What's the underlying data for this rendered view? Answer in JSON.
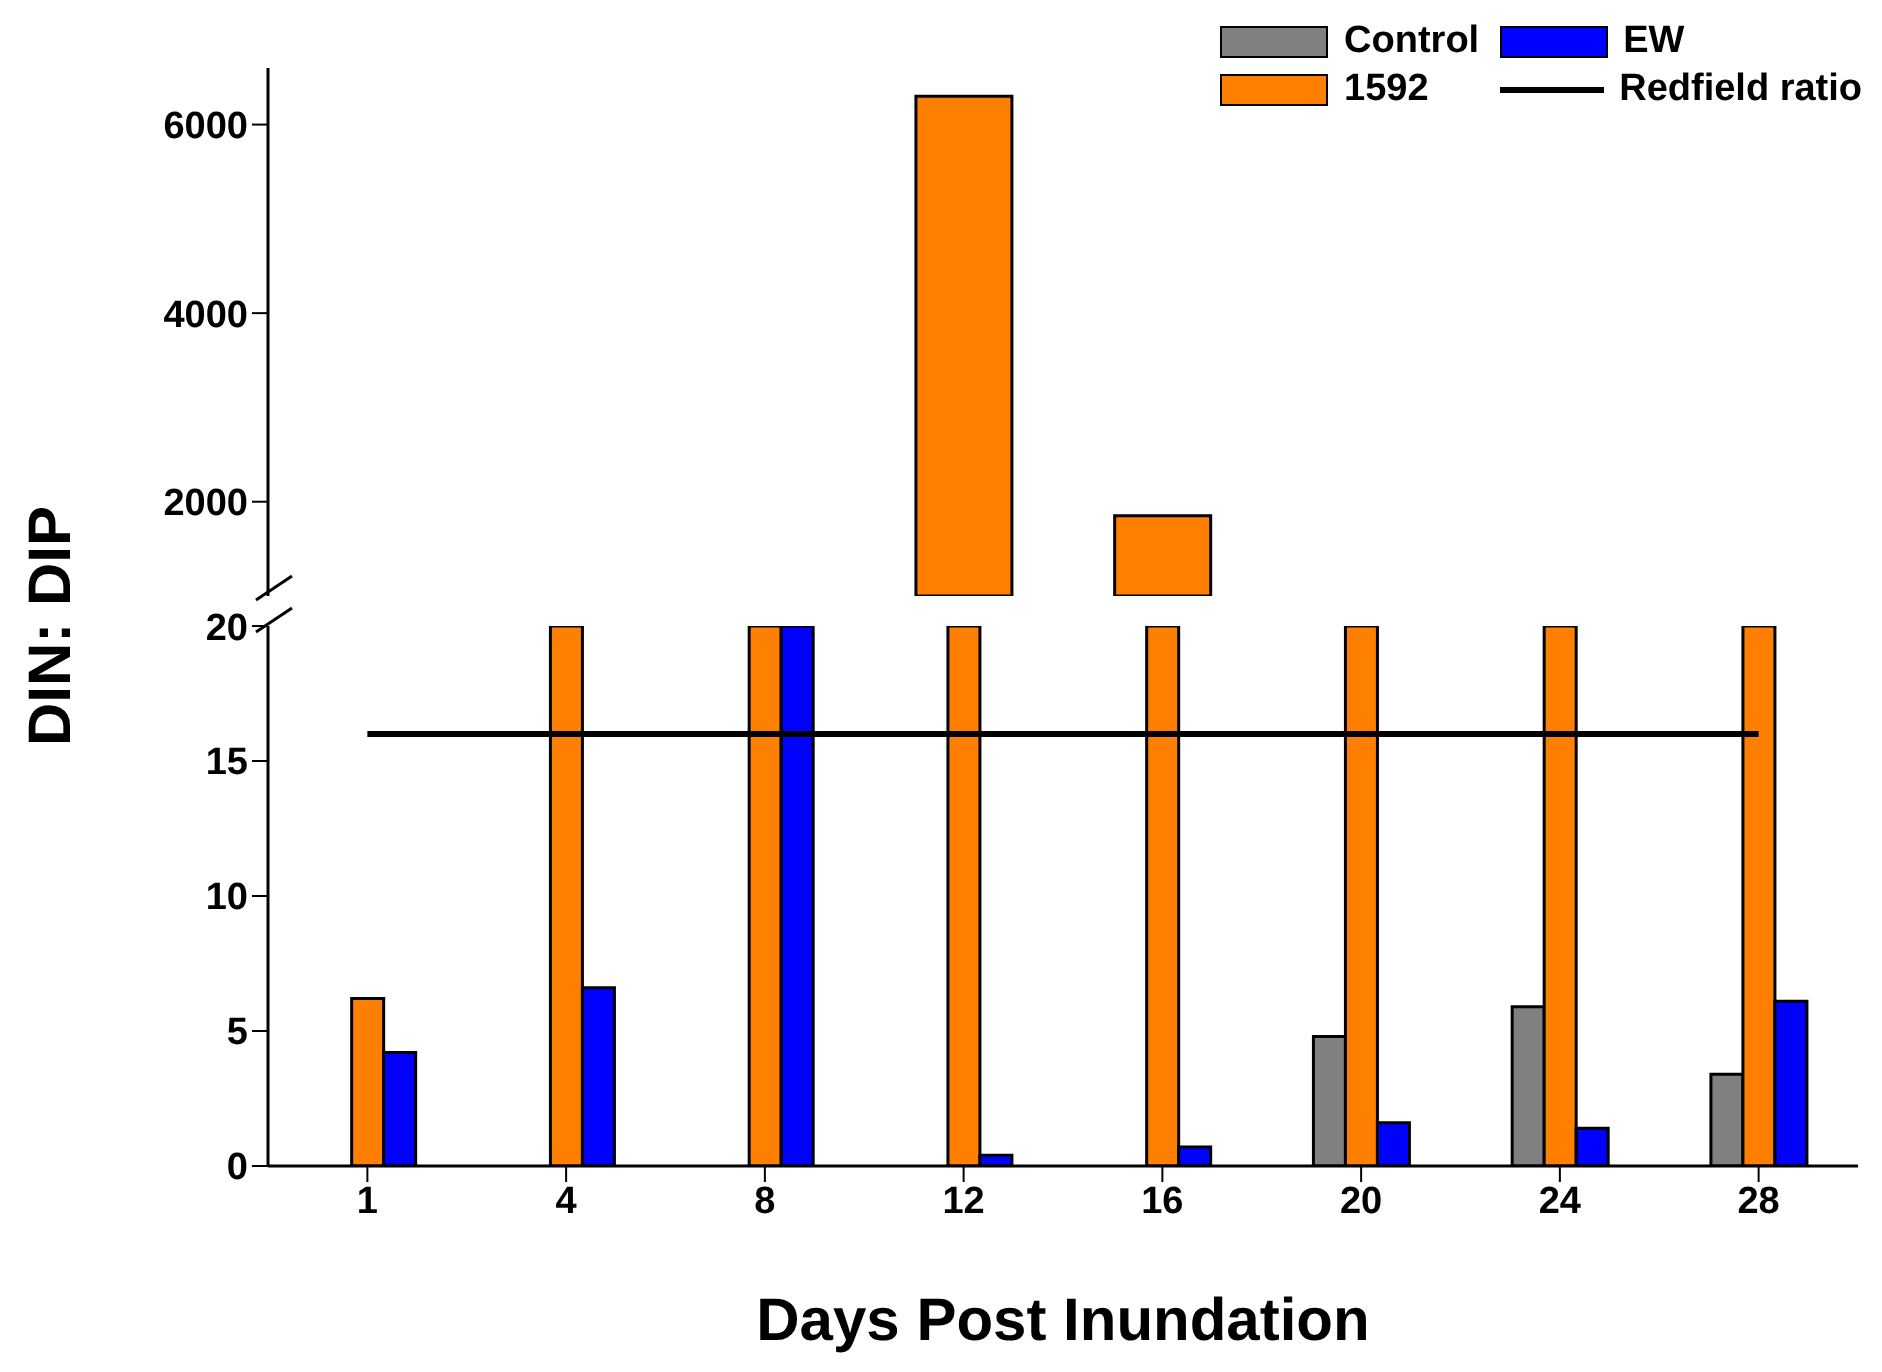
{
  "chart_data": [
    {
      "type": "bar",
      "categories": [
        "1",
        "4",
        "8",
        "12",
        "16",
        "20",
        "24",
        "28"
      ],
      "series": [
        {
          "color": "#ff8000",
          "values": [
            null,
            null,
            null,
            6300,
            1850,
            null,
            null,
            null
          ]
        }
      ],
      "ylim": [
        1000,
        6600
      ],
      "yticks": [
        2000,
        4000,
        6000
      ],
      "tick_labels": "y"
    },
    {
      "type": "bar",
      "xlabel": "Days Post Inundation",
      "ylabel": "DIN: DIP",
      "categories": [
        "1",
        "4",
        "8",
        "12",
        "16",
        "20",
        "24",
        "28"
      ],
      "series": [
        {
          "name": "Control",
          "color": "#808080",
          "values": [
            null,
            null,
            null,
            null,
            null,
            4.8,
            5.9,
            3.4
          ]
        },
        {
          "name": "1592",
          "color": "#ff8000",
          "values": [
            6.2,
            20,
            20,
            20,
            20,
            20,
            20,
            20
          ]
        },
        {
          "name": "EW",
          "color": "#0000ff",
          "values": [
            4.2,
            6.6,
            20,
            0.4,
            0.7,
            1.6,
            1.4,
            6.1
          ]
        }
      ],
      "ylim": [
        0,
        20
      ],
      "yticks": [
        0,
        5,
        10,
        15,
        20
      ],
      "legend": "top right",
      "ref_lines": [
        {
          "axis": "y",
          "value": 16,
          "label": "Redfield ratio",
          "color": "#000000"
        }
      ]
    }
  ]
}
